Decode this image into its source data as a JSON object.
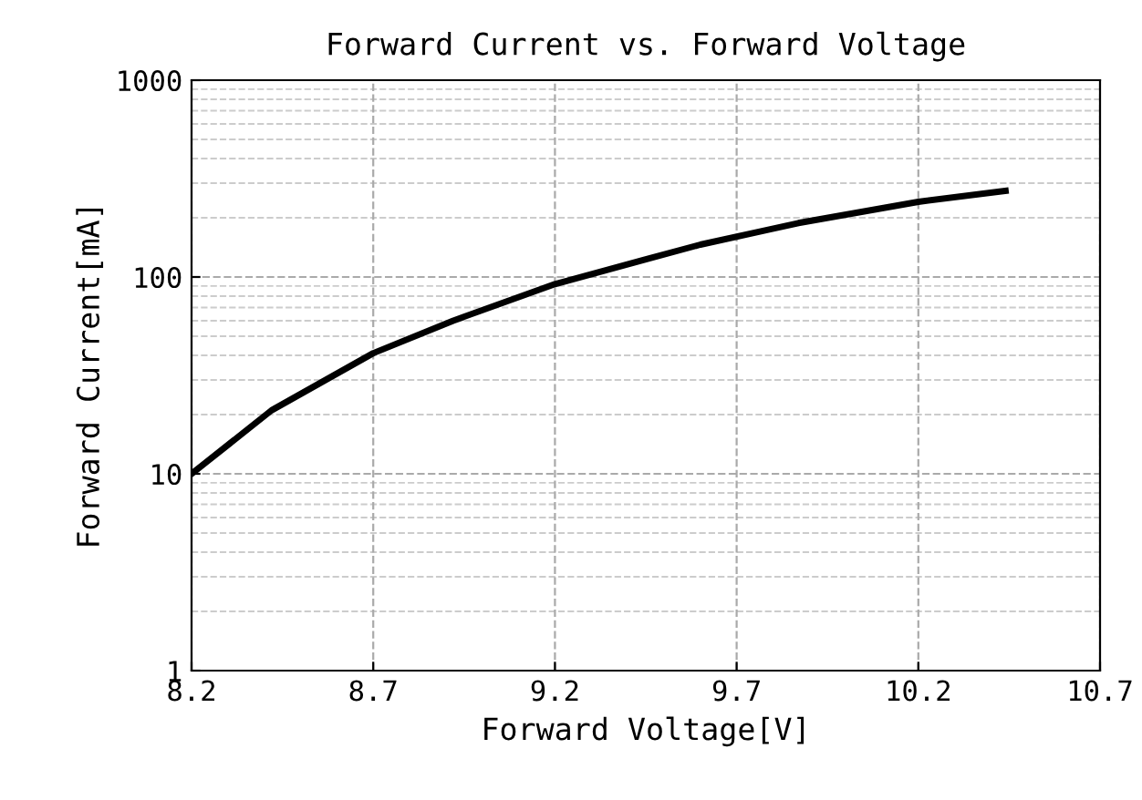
{
  "chart_data": {
    "type": "line",
    "title": "Forward Current vs. Forward Voltage",
    "xlabel": "Forward Voltage[V]",
    "ylabel": "Forward Current[mA]",
    "x": [
      8.2,
      8.42,
      8.7,
      8.92,
      9.2,
      9.45,
      9.6,
      9.87,
      10.2,
      10.44
    ],
    "series": [
      {
        "color": "#000000",
        "values": [
          10,
          21,
          41,
          60,
          92,
          123,
          146,
          188,
          241,
          274
        ]
      }
    ],
    "log": "y",
    "xlim": [
      8.2,
      10.7
    ],
    "xticks": [
      8.2,
      8.7,
      9.2,
      9.7,
      10.2,
      10.7
    ],
    "ylim": [
      1,
      1000
    ],
    "yticks": [
      1,
      10,
      100,
      1000
    ],
    "grid": true,
    "marker": "none",
    "line_style": "solid",
    "legend": false
  }
}
